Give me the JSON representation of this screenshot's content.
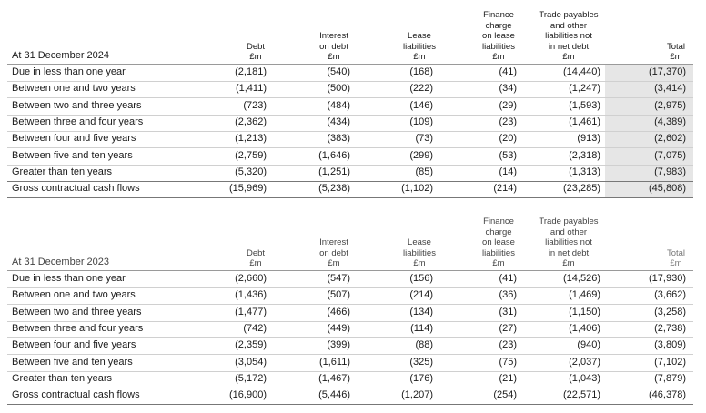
{
  "tables": [
    {
      "label": "At 31 December 2024",
      "columns": [
        [
          "Debt",
          "£m"
        ],
        [
          "Interest",
          "on debt",
          "£m"
        ],
        [
          "Lease",
          "liabilities",
          "£m"
        ],
        [
          "Finance",
          "charge",
          "on lease",
          "liabilities",
          "£m"
        ],
        [
          "Trade payables",
          "and other",
          "liabilities not",
          "in net debt",
          "£m"
        ],
        [
          "Total",
          "£m"
        ]
      ],
      "rows": [
        [
          "Due in less than one year",
          "(2,181)",
          "(540)",
          "(168)",
          "(41)",
          "(14,440)",
          "(17,370)"
        ],
        [
          "Between one and two years",
          "(1,411)",
          "(500)",
          "(222)",
          "(34)",
          "(1,247)",
          "(3,414)"
        ],
        [
          "Between two and three years",
          "(723)",
          "(484)",
          "(146)",
          "(29)",
          "(1,593)",
          "(2,975)"
        ],
        [
          "Between three and four years",
          "(2,362)",
          "(434)",
          "(109)",
          "(23)",
          "(1,461)",
          "(4,389)"
        ],
        [
          "Between four and five years",
          "(1,213)",
          "(383)",
          "(73)",
          "(20)",
          "(913)",
          "(2,602)"
        ],
        [
          "Between five and ten years",
          "(2,759)",
          "(1,646)",
          "(299)",
          "(53)",
          "(2,318)",
          "(7,075)"
        ],
        [
          "Greater than ten years",
          "(5,320)",
          "(1,251)",
          "(85)",
          "(14)",
          "(1,313)",
          "(7,983)"
        ],
        [
          "Gross contractual cash flows",
          "(15,969)",
          "(5,238)",
          "(1,102)",
          "(214)",
          "(23,285)",
          "(45,808)"
        ]
      ]
    },
    {
      "label": "At 31 December 2023",
      "columns": [
        [
          "Debt",
          "£m"
        ],
        [
          "Interest",
          "on debt",
          "£m"
        ],
        [
          "Lease",
          "liabilities",
          "£m"
        ],
        [
          "Finance",
          "charge",
          "on lease",
          "liabilities",
          "£m"
        ],
        [
          "Trade payables",
          "and other",
          "liabilities not",
          "in net debt",
          "£m"
        ],
        [
          "Total",
          "£m"
        ]
      ],
      "rows": [
        [
          "Due in less than one year",
          "(2,660)",
          "(547)",
          "(156)",
          "(41)",
          "(14,526)",
          "(17,930)"
        ],
        [
          "Between one and two years",
          "(1,436)",
          "(507)",
          "(214)",
          "(36)",
          "(1,469)",
          "(3,662)"
        ],
        [
          "Between two and three years",
          "(1,477)",
          "(466)",
          "(134)",
          "(31)",
          "(1,150)",
          "(3,258)"
        ],
        [
          "Between three and four years",
          "(742)",
          "(449)",
          "(114)",
          "(27)",
          "(1,406)",
          "(2,738)"
        ],
        [
          "Between four and five years",
          "(2,359)",
          "(399)",
          "(88)",
          "(23)",
          "(940)",
          "(3,809)"
        ],
        [
          "Between five and ten years",
          "(3,054)",
          "(1,611)",
          "(325)",
          "(75)",
          "(2,037)",
          "(7,102)"
        ],
        [
          "Greater than ten years",
          "(5,172)",
          "(1,467)",
          "(176)",
          "(21)",
          "(1,043)",
          "(7,879)"
        ],
        [
          "Gross contractual cash flows",
          "(16,900)",
          "(5,446)",
          "(1,207)",
          "(254)",
          "(22,571)",
          "(46,378)"
        ]
      ]
    }
  ]
}
